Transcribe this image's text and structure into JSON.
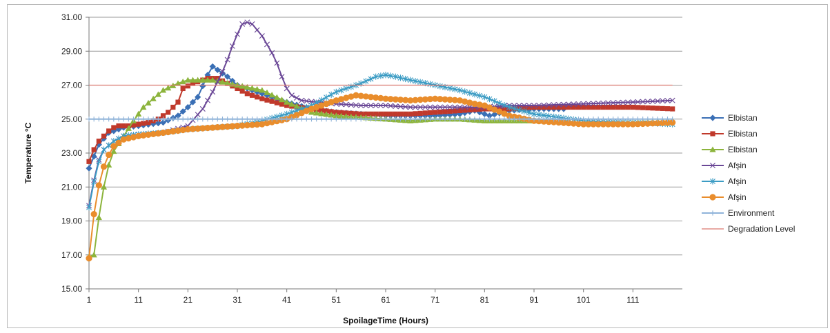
{
  "chart_data": {
    "type": "line",
    "title": "",
    "xlabel": "SpoilageTime (Hours)",
    "ylabel": "Temperature °C",
    "xlim": [
      1,
      120
    ],
    "ylim": [
      15,
      31
    ],
    "x_ticks": [
      "1",
      "11",
      "21",
      "31",
      "41",
      "51",
      "61",
      "71",
      "81",
      "91",
      "101",
      "111"
    ],
    "y_ticks": [
      "15.00",
      "17.00",
      "19.00",
      "21.00",
      "23.00",
      "25.00",
      "27.00",
      "29.00",
      "31.00"
    ],
    "grid": true,
    "legend_position": "right",
    "series": [
      {
        "name": "Elbistan",
        "color": "#3a6fb5",
        "marker": "diamond",
        "points": [
          [
            1,
            22.1
          ],
          [
            3,
            23.5
          ],
          [
            5,
            24.2
          ],
          [
            8,
            24.5
          ],
          [
            11,
            24.6
          ],
          [
            16,
            24.8
          ],
          [
            19,
            25.2
          ],
          [
            21,
            25.7
          ],
          [
            23,
            26.3
          ],
          [
            25,
            27.6
          ],
          [
            26,
            28.1
          ],
          [
            27,
            27.9
          ],
          [
            29,
            27.5
          ],
          [
            31,
            27.0
          ],
          [
            36,
            26.5
          ],
          [
            41,
            26.0
          ],
          [
            46,
            25.6
          ],
          [
            51,
            25.4
          ],
          [
            56,
            25.3
          ],
          [
            61,
            25.2
          ],
          [
            66,
            25.2
          ],
          [
            71,
            25.2
          ],
          [
            76,
            25.3
          ],
          [
            79,
            25.5
          ],
          [
            81,
            25.3
          ],
          [
            82,
            25.2
          ],
          [
            86,
            25.5
          ],
          [
            91,
            25.6
          ],
          [
            96,
            25.6
          ],
          [
            97,
            25.6
          ]
        ]
      },
      {
        "name": "Elbistan",
        "color": "#c0392b",
        "marker": "square",
        "points": [
          [
            1,
            22.5
          ],
          [
            2,
            23.2
          ],
          [
            3,
            23.7
          ],
          [
            4,
            24.0
          ],
          [
            5,
            24.3
          ],
          [
            6,
            24.5
          ],
          [
            7,
            24.6
          ],
          [
            9,
            24.6
          ],
          [
            11,
            24.7
          ],
          [
            13,
            24.8
          ],
          [
            15,
            25.0
          ],
          [
            17,
            25.4
          ],
          [
            19,
            26.0
          ],
          [
            20,
            26.8
          ],
          [
            22,
            27.1
          ],
          [
            25,
            27.4
          ],
          [
            27,
            27.4
          ],
          [
            29,
            27.1
          ],
          [
            31,
            26.8
          ],
          [
            33,
            26.5
          ],
          [
            36,
            26.2
          ],
          [
            41,
            25.8
          ],
          [
            46,
            25.6
          ],
          [
            51,
            25.4
          ],
          [
            56,
            25.3
          ],
          [
            61,
            25.3
          ],
          [
            66,
            25.3
          ],
          [
            71,
            25.4
          ],
          [
            76,
            25.5
          ],
          [
            81,
            25.6
          ],
          [
            86,
            25.6
          ],
          [
            91,
            25.7
          ],
          [
            101,
            25.7
          ],
          [
            111,
            25.7
          ],
          [
            119,
            25.6
          ]
        ]
      },
      {
        "name": "Elbistan",
        "color": "#8cb43c",
        "marker": "triangle",
        "points": [
          [
            1,
            16.9
          ],
          [
            2,
            17.0
          ],
          [
            3,
            19.2
          ],
          [
            4,
            21.0
          ],
          [
            5,
            22.3
          ],
          [
            6,
            23.1
          ],
          [
            8,
            24.0
          ],
          [
            10,
            24.9
          ],
          [
            12,
            25.7
          ],
          [
            14,
            26.2
          ],
          [
            16,
            26.7
          ],
          [
            19,
            27.1
          ],
          [
            21,
            27.3
          ],
          [
            26,
            27.3
          ],
          [
            31,
            27.0
          ],
          [
            36,
            26.7
          ],
          [
            41,
            26.0
          ],
          [
            46,
            25.4
          ],
          [
            51,
            25.2
          ],
          [
            56,
            25.1
          ],
          [
            61,
            25.0
          ],
          [
            66,
            24.9
          ],
          [
            71,
            25.0
          ],
          [
            76,
            25.0
          ],
          [
            81,
            24.9
          ],
          [
            91,
            24.9
          ],
          [
            101,
            24.8
          ],
          [
            111,
            24.8
          ],
          [
            119,
            24.9
          ]
        ]
      },
      {
        "name": "Afşin",
        "color": "#6a4796",
        "marker": "x",
        "points": [
          [
            1,
            19.9
          ],
          [
            2,
            21.4
          ],
          [
            3,
            22.6
          ],
          [
            4,
            23.2
          ],
          [
            6,
            23.7
          ],
          [
            8,
            24.0
          ],
          [
            11,
            24.1
          ],
          [
            16,
            24.2
          ],
          [
            21,
            24.6
          ],
          [
            24,
            25.6
          ],
          [
            26,
            26.6
          ],
          [
            28,
            27.8
          ],
          [
            29,
            28.5
          ],
          [
            30,
            29.3
          ],
          [
            31,
            30.0
          ],
          [
            32,
            30.6
          ],
          [
            33,
            30.7
          ],
          [
            34,
            30.6
          ],
          [
            36,
            29.9
          ],
          [
            38,
            28.9
          ],
          [
            39,
            28.3
          ],
          [
            40,
            27.5
          ],
          [
            41,
            26.8
          ],
          [
            42,
            26.4
          ],
          [
            44,
            26.1
          ],
          [
            47,
            26.0
          ],
          [
            51,
            25.9
          ],
          [
            56,
            25.8
          ],
          [
            61,
            25.8
          ],
          [
            66,
            25.7
          ],
          [
            71,
            25.7
          ],
          [
            76,
            25.7
          ],
          [
            81,
            25.7
          ],
          [
            86,
            25.8
          ],
          [
            91,
            25.8
          ],
          [
            101,
            25.9
          ],
          [
            111,
            26.0
          ],
          [
            119,
            26.1
          ]
        ]
      },
      {
        "name": "Afşin",
        "color": "#3c9cc4",
        "marker": "star",
        "points": [
          [
            1,
            19.8
          ],
          [
            2,
            21.3
          ],
          [
            3,
            22.5
          ],
          [
            4,
            23.2
          ],
          [
            6,
            23.7
          ],
          [
            8,
            24.0
          ],
          [
            11,
            24.1
          ],
          [
            16,
            24.2
          ],
          [
            21,
            24.4
          ],
          [
            26,
            24.5
          ],
          [
            31,
            24.6
          ],
          [
            36,
            24.9
          ],
          [
            41,
            25.3
          ],
          [
            46,
            25.8
          ],
          [
            51,
            26.6
          ],
          [
            56,
            27.1
          ],
          [
            59,
            27.5
          ],
          [
            61,
            27.6
          ],
          [
            63,
            27.5
          ],
          [
            66,
            27.3
          ],
          [
            71,
            27.0
          ],
          [
            76,
            26.7
          ],
          [
            81,
            26.3
          ],
          [
            86,
            25.7
          ],
          [
            91,
            25.3
          ],
          [
            96,
            25.1
          ],
          [
            101,
            24.9
          ],
          [
            111,
            24.8
          ],
          [
            119,
            24.7
          ]
        ]
      },
      {
        "name": "Afşin",
        "color": "#e98d2c",
        "marker": "circle",
        "points": [
          [
            1,
            16.8
          ],
          [
            2,
            19.4
          ],
          [
            3,
            21.1
          ],
          [
            4,
            22.2
          ],
          [
            5,
            22.9
          ],
          [
            6,
            23.4
          ],
          [
            8,
            23.8
          ],
          [
            11,
            24.0
          ],
          [
            16,
            24.2
          ],
          [
            21,
            24.4
          ],
          [
            26,
            24.5
          ],
          [
            31,
            24.6
          ],
          [
            36,
            24.7
          ],
          [
            41,
            25.0
          ],
          [
            46,
            25.6
          ],
          [
            51,
            26.1
          ],
          [
            55,
            26.4
          ],
          [
            58,
            26.3
          ],
          [
            61,
            26.2
          ],
          [
            66,
            26.1
          ],
          [
            71,
            26.2
          ],
          [
            76,
            26.1
          ],
          [
            79,
            25.9
          ],
          [
            81,
            25.8
          ],
          [
            86,
            25.2
          ],
          [
            91,
            24.9
          ],
          [
            96,
            24.8
          ],
          [
            101,
            24.7
          ],
          [
            111,
            24.7
          ],
          [
            119,
            24.8
          ]
        ]
      },
      {
        "name": "Environment",
        "color": "#8fb3d9",
        "marker": "plus",
        "points": [
          [
            1,
            25.0
          ],
          [
            119,
            25.0
          ]
        ]
      },
      {
        "name": "Degradation Level",
        "color": "#d9776e",
        "marker": "none",
        "points": [
          [
            1,
            27.0
          ],
          [
            119,
            27.0
          ]
        ]
      }
    ]
  }
}
